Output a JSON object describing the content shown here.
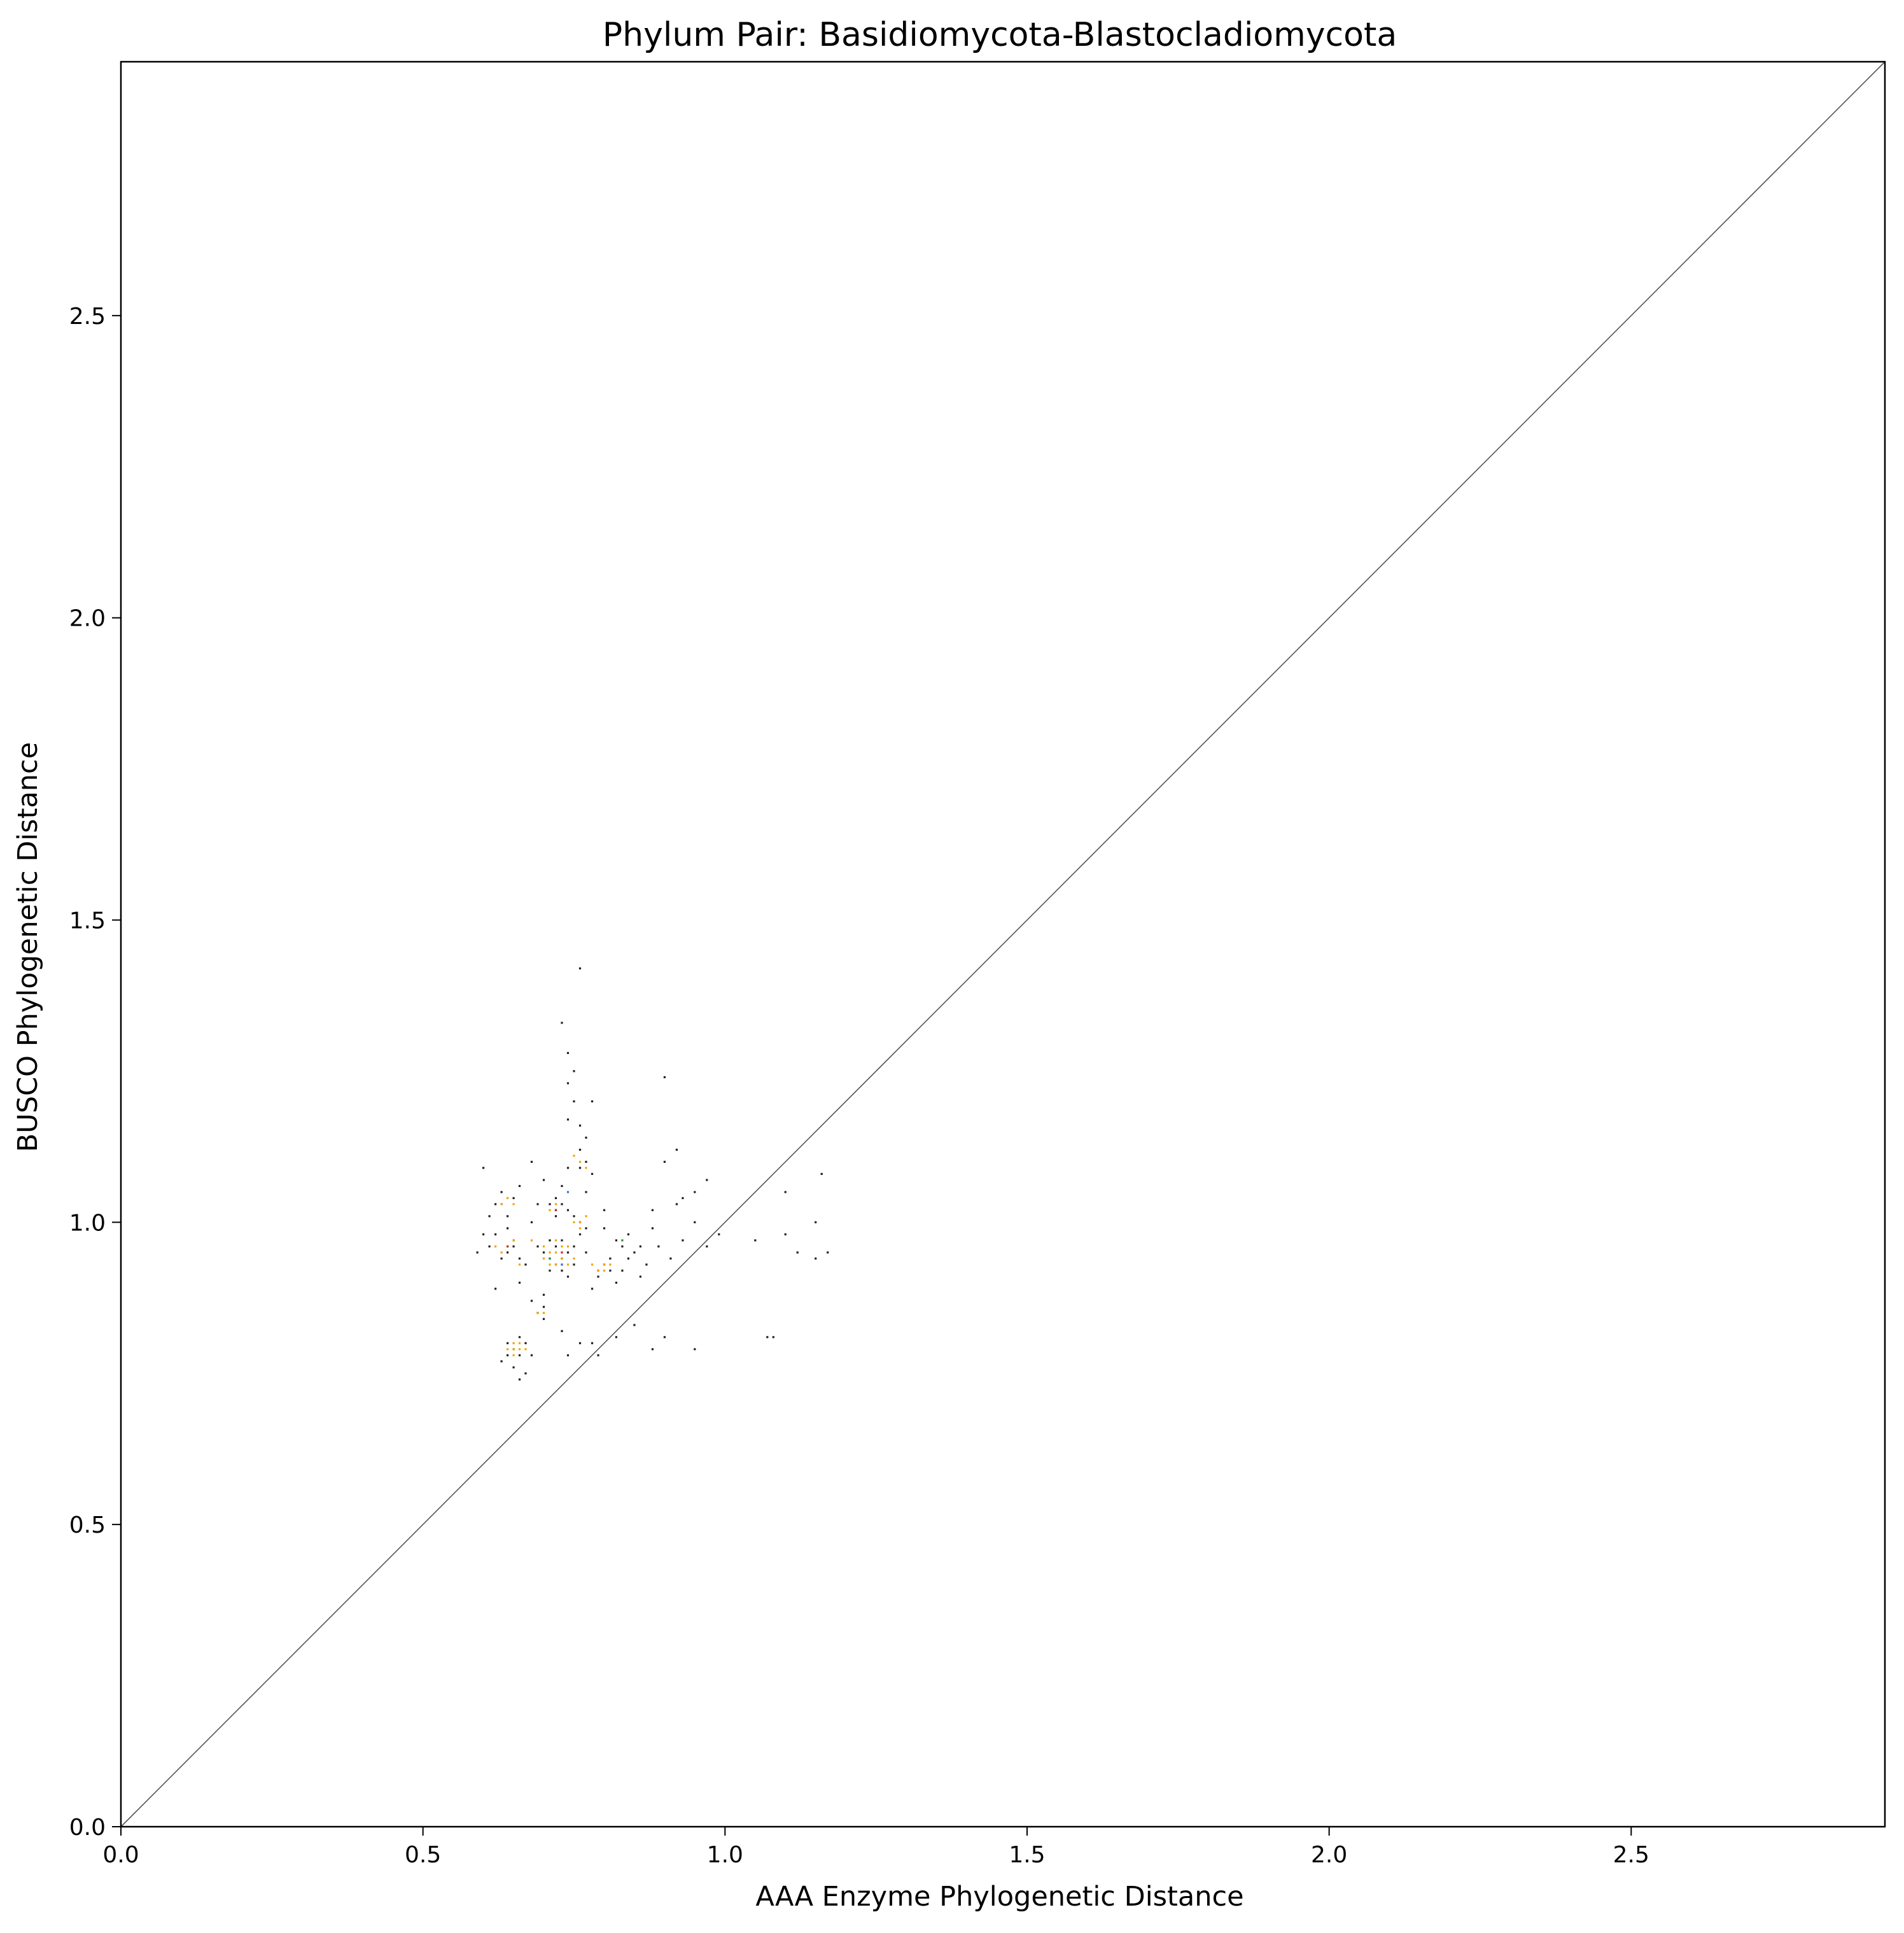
{
  "chart_data": {
    "type": "scatter",
    "title": "Phylum Pair: Basidiomycota-Blastocladiomycota",
    "xlabel": "AAA Enzyme Phylogenetic Distance",
    "ylabel": "BUSCO Phylogenetic Distance",
    "xlim": [
      0.0,
      2.92
    ],
    "ylim": [
      0.0,
      2.92
    ],
    "xticks": [
      0.0,
      0.5,
      1.0,
      1.5,
      2.0,
      2.5
    ],
    "yticks": [
      0.0,
      0.5,
      1.0,
      1.5,
      2.0,
      2.5
    ],
    "xtick_labels": [
      "0.0",
      "0.5",
      "1.0",
      "1.5",
      "2.0",
      "2.5"
    ],
    "ytick_labels": [
      "0.0",
      "0.5",
      "1.0",
      "1.5",
      "2.0",
      "2.5"
    ],
    "reference_line": {
      "type": "identity",
      "color": "#555555"
    },
    "grid": false,
    "colors": {
      "dark": "#222222",
      "orange": "#f5a300",
      "blue": "#3a6fd8",
      "red": "#cc2b1d",
      "green": "#2f9a3a"
    },
    "series": [
      {
        "color": "#222222",
        "points": [
          [
            0.6,
            1.09
          ],
          [
            0.62,
            1.03
          ],
          [
            0.63,
            1.05
          ],
          [
            0.64,
            1.01
          ],
          [
            0.66,
            1.06
          ],
          [
            0.68,
            1.1
          ],
          [
            0.7,
            1.07
          ],
          [
            0.72,
            1.04
          ],
          [
            0.74,
            1.09
          ],
          [
            0.76,
            1.12
          ],
          [
            0.61,
            0.96
          ],
          [
            0.63,
            0.94
          ],
          [
            0.65,
            0.97
          ],
          [
            0.67,
            0.93
          ],
          [
            0.69,
            0.96
          ],
          [
            0.71,
            0.92
          ],
          [
            0.73,
            0.97
          ],
          [
            0.75,
            0.93
          ],
          [
            0.77,
            0.95
          ],
          [
            0.79,
            0.91
          ],
          [
            0.81,
            0.94
          ],
          [
            0.83,
            0.92
          ],
          [
            0.85,
            0.95
          ],
          [
            0.87,
            0.93
          ],
          [
            0.89,
            0.96
          ],
          [
            0.91,
            0.94
          ],
          [
            0.93,
            0.97
          ],
          [
            0.95,
            1.0
          ],
          [
            0.97,
            0.96
          ],
          [
            0.99,
            0.98
          ],
          [
            0.62,
            0.89
          ],
          [
            0.66,
            0.9
          ],
          [
            0.7,
            0.88
          ],
          [
            0.74,
            0.91
          ],
          [
            0.78,
            0.89
          ],
          [
            0.82,
            0.9
          ],
          [
            0.86,
            0.91
          ],
          [
            0.6,
            0.98
          ],
          [
            0.59,
            0.95
          ],
          [
            0.64,
            0.99
          ],
          [
            0.68,
            1.0
          ],
          [
            0.72,
            1.01
          ],
          [
            0.76,
            1.0
          ],
          [
            0.8,
            0.99
          ],
          [
            0.84,
            0.98
          ],
          [
            0.88,
            0.99
          ],
          [
            0.65,
            1.04
          ],
          [
            0.69,
            1.03
          ],
          [
            0.73,
            1.06
          ],
          [
            0.77,
            1.05
          ],
          [
            0.8,
            1.02
          ],
          [
            0.7,
            0.84
          ],
          [
            0.73,
            0.82
          ],
          [
            0.76,
            0.8
          ],
          [
            0.79,
            0.78
          ],
          [
            0.82,
            0.81
          ],
          [
            0.85,
            0.83
          ],
          [
            0.88,
            0.79
          ],
          [
            0.66,
            0.81
          ],
          [
            0.68,
            0.78
          ],
          [
            0.63,
            0.77
          ],
          [
            0.65,
            0.76
          ],
          [
            0.67,
            0.75
          ],
          [
            0.66,
            0.74
          ],
          [
            0.74,
            0.78
          ],
          [
            0.78,
            0.8
          ],
          [
            0.9,
            0.81
          ],
          [
            0.95,
            0.79
          ],
          [
            0.74,
            1.17
          ],
          [
            0.75,
            1.2
          ],
          [
            0.74,
            1.23
          ],
          [
            0.75,
            1.25
          ],
          [
            0.74,
            1.28
          ],
          [
            0.73,
            1.33
          ],
          [
            0.76,
            1.42
          ],
          [
            0.78,
            1.2
          ],
          [
            0.9,
            1.24
          ],
          [
            0.76,
            1.16
          ],
          [
            0.77,
            1.14
          ],
          [
            0.92,
            1.12
          ],
          [
            0.95,
            1.05
          ],
          [
            0.97,
            1.07
          ],
          [
            0.9,
            1.1
          ],
          [
            0.93,
            1.04
          ],
          [
            1.05,
            0.97
          ],
          [
            1.1,
            1.05
          ],
          [
            1.1,
            0.98
          ],
          [
            1.12,
            0.95
          ],
          [
            1.15,
            1.0
          ],
          [
            1.17,
            0.95
          ],
          [
            1.15,
            0.94
          ],
          [
            1.16,
            1.08
          ],
          [
            1.07,
            0.81
          ],
          [
            1.08,
            0.81
          ],
          [
            0.92,
            1.03
          ],
          [
            0.88,
            1.02
          ],
          [
            0.86,
            0.96
          ],
          [
            0.84,
            0.94
          ],
          [
            0.7,
            0.95
          ],
          [
            0.71,
            0.94
          ],
          [
            0.72,
            0.93
          ],
          [
            0.73,
            0.94
          ],
          [
            0.74,
            0.95
          ],
          [
            0.75,
            0.96
          ],
          [
            0.72,
            0.96
          ],
          [
            0.73,
            0.92
          ],
          [
            0.71,
            0.97
          ],
          [
            0.8,
            0.93
          ],
          [
            0.79,
            0.92
          ],
          [
            0.81,
            0.92
          ],
          [
            0.64,
            0.8
          ],
          [
            0.65,
            0.79
          ],
          [
            0.66,
            0.78
          ],
          [
            0.67,
            0.8
          ],
          [
            0.64,
            0.78
          ],
          [
            0.72,
            1.02
          ],
          [
            0.73,
            1.03
          ],
          [
            0.74,
            1.02
          ],
          [
            0.71,
            1.03
          ],
          [
            0.66,
            0.94
          ],
          [
            0.64,
            0.95
          ],
          [
            0.65,
            0.96
          ],
          [
            0.62,
            0.98
          ],
          [
            0.61,
            1.01
          ],
          [
            0.63,
            1.03
          ],
          [
            0.77,
            1.1
          ],
          [
            0.76,
            1.09
          ],
          [
            0.78,
            1.08
          ],
          [
            0.82,
            0.97
          ],
          [
            0.83,
            0.96
          ],
          [
            0.69,
            0.85
          ],
          [
            0.7,
            0.86
          ],
          [
            0.68,
            0.87
          ],
          [
            0.75,
            1.01
          ],
          [
            0.77,
            0.99
          ],
          [
            0.76,
            0.98
          ]
        ]
      },
      {
        "color": "#f5a300",
        "points": [
          [
            0.72,
            0.95
          ],
          [
            0.73,
            0.94
          ],
          [
            0.71,
            0.95
          ],
          [
            0.72,
            0.93
          ],
          [
            0.74,
            0.96
          ],
          [
            0.73,
            0.96
          ],
          [
            0.71,
            0.93
          ],
          [
            0.7,
            0.94
          ],
          [
            0.75,
            0.94
          ],
          [
            0.72,
            0.97
          ],
          [
            0.8,
            0.93
          ],
          [
            0.79,
            0.92
          ],
          [
            0.81,
            0.93
          ],
          [
            0.8,
            0.92
          ],
          [
            0.78,
            0.93
          ],
          [
            0.65,
            0.79
          ],
          [
            0.66,
            0.79
          ],
          [
            0.64,
            0.79
          ],
          [
            0.65,
            0.8
          ],
          [
            0.66,
            0.8
          ],
          [
            0.67,
            0.79
          ],
          [
            0.65,
            0.78
          ],
          [
            0.76,
            1.0
          ],
          [
            0.77,
            1.01
          ],
          [
            0.75,
            1.0
          ],
          [
            0.76,
            0.99
          ],
          [
            0.76,
            1.1
          ],
          [
            0.77,
            1.09
          ],
          [
            0.75,
            1.11
          ],
          [
            0.64,
            1.04
          ],
          [
            0.63,
            1.03
          ],
          [
            0.65,
            1.03
          ],
          [
            0.64,
            0.96
          ],
          [
            0.65,
            0.97
          ],
          [
            0.63,
            0.95
          ],
          [
            0.69,
            0.85
          ],
          [
            0.7,
            0.85
          ],
          [
            0.71,
            1.02
          ],
          [
            0.72,
            1.03
          ],
          [
            0.83,
            0.97
          ],
          [
            0.7,
            0.96
          ],
          [
            0.74,
            0.93
          ],
          [
            0.73,
            0.93
          ],
          [
            0.66,
            0.93
          ],
          [
            0.62,
            0.96
          ],
          [
            0.68,
            0.97
          ]
        ]
      },
      {
        "color": "#3a6fd8",
        "points": [
          [
            0.74,
            1.05
          ],
          [
            0.73,
            0.93
          ]
        ]
      },
      {
        "color": "#cc2b1d",
        "points": [
          [
            0.72,
            1.02
          ],
          [
            0.73,
            0.95
          ],
          [
            0.64,
            0.96
          ]
        ]
      },
      {
        "color": "#2f9a3a",
        "points": [
          [
            0.83,
            0.97
          ],
          [
            0.71,
            0.94
          ]
        ]
      }
    ]
  }
}
